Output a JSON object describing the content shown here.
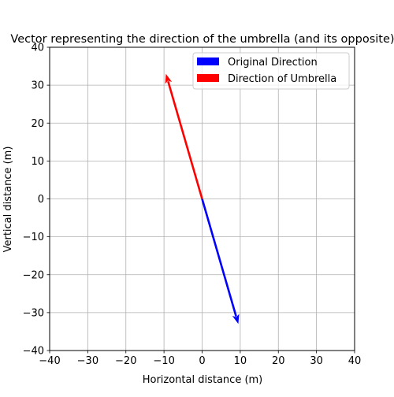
{
  "chart_data": {
    "type": "quiver",
    "title": "Vector representing the direction of the umbrella (and its opposite)",
    "xlabel": "Horizontal distance (m)",
    "ylabel": "Vertical distance (m)",
    "xlim": [
      -40,
      40
    ],
    "ylim": [
      -40,
      40
    ],
    "xticks": [
      -40,
      -30,
      -20,
      -10,
      0,
      10,
      20,
      30,
      40
    ],
    "yticks": [
      -40,
      -30,
      -20,
      -10,
      0,
      10,
      20,
      30,
      40
    ],
    "grid": true,
    "legend_position": "top-right",
    "series": [
      {
        "name": "Original Direction",
        "color": "#0000ff",
        "start": [
          0,
          0
        ],
        "end": [
          9.5,
          -33
        ]
      },
      {
        "name": "Direction of Umbrella",
        "color": "#ff0000",
        "start": [
          0,
          0
        ],
        "end": [
          -9.5,
          33
        ]
      }
    ]
  }
}
